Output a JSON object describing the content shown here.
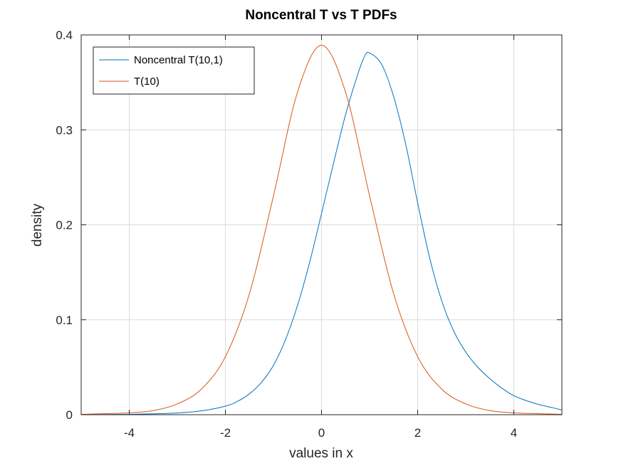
{
  "chart_data": {
    "type": "line",
    "title": "Noncentral T vs T PDFs",
    "xlabel": "values in x",
    "ylabel": "density",
    "xlim": [
      -5,
      5
    ],
    "ylim": [
      0,
      0.4
    ],
    "xticks": [
      -4,
      -2,
      0,
      2,
      4
    ],
    "xtick_labels": [
      "-4",
      "-2",
      "0",
      "2",
      "4"
    ],
    "yticks": [
      0,
      0.1,
      0.2,
      0.3,
      0.4
    ],
    "ytick_labels": [
      "0",
      "0.1",
      "0.2",
      "0.3",
      "0.4"
    ],
    "grid": true,
    "legend_position": "top-left",
    "series": [
      {
        "name": "Noncentral T(10,1)",
        "color": "#0072BD",
        "x": [
          -5,
          -4.5,
          -4,
          -3.5,
          -3,
          -2.5,
          -2,
          -1.75,
          -1.5,
          -1.25,
          -1,
          -0.75,
          -0.5,
          -0.25,
          0,
          0.25,
          0.5,
          0.75,
          0.9,
          1,
          1.25,
          1.5,
          1.75,
          2,
          2.25,
          2.5,
          2.75,
          3,
          3.25,
          3.5,
          3.75,
          4,
          4.25,
          4.5,
          4.75,
          5
        ],
        "y": [
          0.0001,
          0.0002,
          0.0004,
          0.0009,
          0.0018,
          0.004,
          0.009,
          0.014,
          0.022,
          0.034,
          0.052,
          0.079,
          0.115,
          0.16,
          0.212,
          0.265,
          0.316,
          0.358,
          0.378,
          0.381,
          0.369,
          0.335,
          0.285,
          0.223,
          0.165,
          0.12,
          0.088,
          0.066,
          0.05,
          0.038,
          0.028,
          0.02,
          0.015,
          0.011,
          0.008,
          0.005
        ]
      },
      {
        "name": "T(10)",
        "color": "#D95319",
        "x": [
          -5,
          -4.5,
          -4,
          -3.5,
          -3,
          -2.5,
          -2,
          -1.5,
          -1,
          -0.5,
          0,
          0.5,
          1,
          1.5,
          2,
          2.5,
          3,
          3.5,
          4,
          4.5,
          5
        ],
        "y": [
          0.0004,
          0.0011,
          0.002,
          0.0043,
          0.0114,
          0.0269,
          0.0611,
          0.1274,
          0.2304,
          0.3397,
          0.3891,
          0.3397,
          0.2304,
          0.1274,
          0.0611,
          0.0269,
          0.0114,
          0.0043,
          0.002,
          0.0011,
          0.0004
        ]
      }
    ]
  }
}
